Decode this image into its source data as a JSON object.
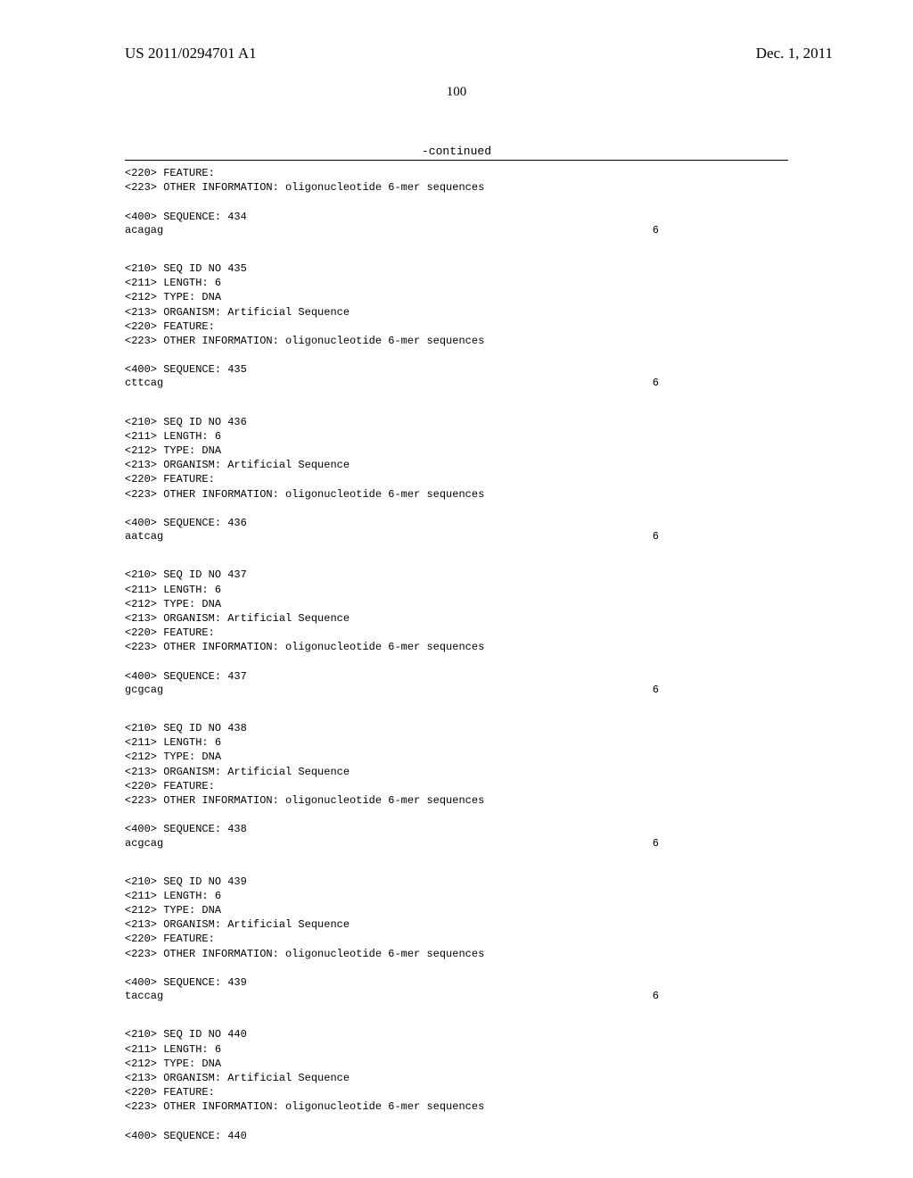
{
  "header": {
    "pub_number": "US 2011/0294701 A1",
    "date": "Dec. 1, 2011"
  },
  "page_number": "100",
  "continued_label": "-continued",
  "tags": {
    "feature": "<220> FEATURE:",
    "other_info": "<223> OTHER INFORMATION: oligonucleotide 6-mer sequences",
    "length": "<211> LENGTH: 6",
    "type": "<212> TYPE: DNA",
    "organism": "<213> ORGANISM: Artificial Sequence"
  },
  "entries": [
    {
      "seq_label": "<400> SEQUENCE: 434",
      "sequence": "acagag",
      "seq_len": "6",
      "has_seqid": false
    },
    {
      "seqid": "<210> SEQ ID NO 435",
      "seq_label": "<400> SEQUENCE: 435",
      "sequence": "cttcag",
      "seq_len": "6",
      "has_seqid": true
    },
    {
      "seqid": "<210> SEQ ID NO 436",
      "seq_label": "<400> SEQUENCE: 436",
      "sequence": "aatcag",
      "seq_len": "6",
      "has_seqid": true
    },
    {
      "seqid": "<210> SEQ ID NO 437",
      "seq_label": "<400> SEQUENCE: 437",
      "sequence": "gcgcag",
      "seq_len": "6",
      "has_seqid": true
    },
    {
      "seqid": "<210> SEQ ID NO 438",
      "seq_label": "<400> SEQUENCE: 438",
      "sequence": "acgcag",
      "seq_len": "6",
      "has_seqid": true
    },
    {
      "seqid": "<210> SEQ ID NO 439",
      "seq_label": "<400> SEQUENCE: 439",
      "sequence": "taccag",
      "seq_len": "6",
      "has_seqid": true
    },
    {
      "seqid": "<210> SEQ ID NO 440",
      "seq_label": "<400> SEQUENCE: 440",
      "sequence": "",
      "seq_len": "",
      "has_seqid": true,
      "no_seq": true
    }
  ]
}
